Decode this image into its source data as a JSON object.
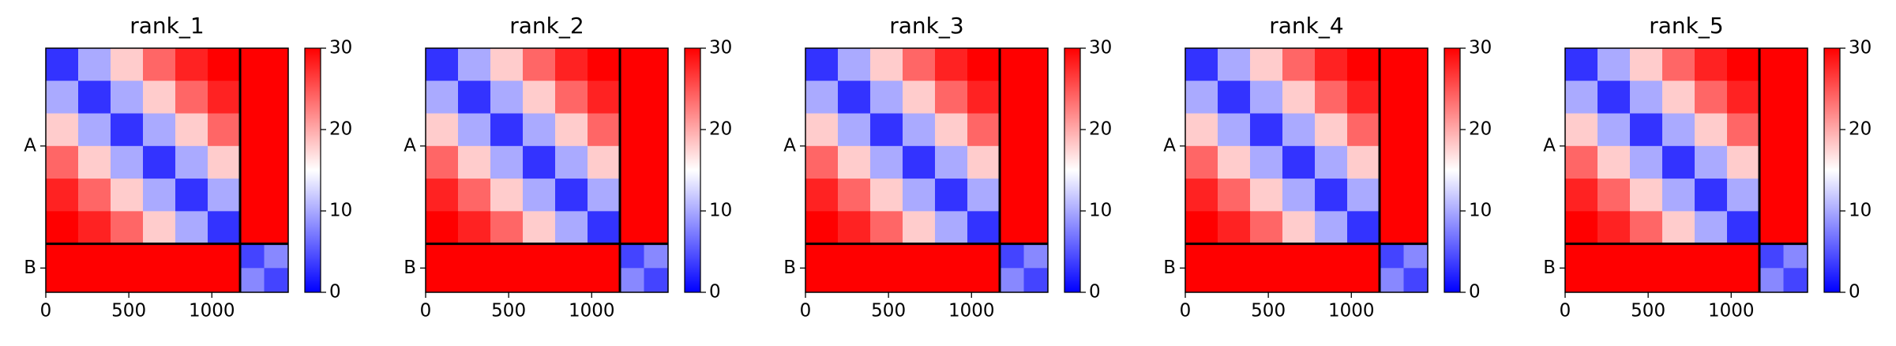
{
  "chart_data": [
    {
      "type": "heatmap",
      "title": "rank_1",
      "bins": [
        0,
        195,
        390,
        585,
        780,
        975,
        1170,
        1315,
        1460
      ],
      "matrix": [
        [
          3,
          10,
          18,
          24,
          28,
          30,
          30,
          30
        ],
        [
          10,
          3,
          10,
          18,
          24,
          28,
          30,
          30
        ],
        [
          18,
          10,
          3,
          10,
          18,
          24,
          30,
          30
        ],
        [
          24,
          18,
          10,
          3,
          10,
          18,
          30,
          30
        ],
        [
          28,
          24,
          18,
          10,
          3,
          10,
          30,
          30
        ],
        [
          30,
          28,
          24,
          18,
          10,
          3,
          30,
          30
        ],
        [
          30,
          30,
          30,
          30,
          30,
          30,
          4,
          8
        ],
        [
          30,
          30,
          30,
          30,
          30,
          30,
          8,
          4
        ]
      ],
      "xlim": [
        0,
        1460
      ],
      "xticks": [
        0,
        500,
        1000
      ],
      "ylim": [
        0,
        1460
      ],
      "y_inverted": true,
      "yticks": [
        {
          "value": 585,
          "label": "A"
        },
        {
          "value": 1315,
          "label": "B"
        }
      ],
      "chain_breaks": [
        1170
      ],
      "clim": [
        0,
        30
      ],
      "cticks": [
        0,
        10,
        20,
        30
      ],
      "colormap": [
        "#0000ff",
        "#ffffff",
        "#ff0000"
      ]
    },
    {
      "type": "heatmap",
      "title": "rank_2",
      "bins": [
        0,
        195,
        390,
        585,
        780,
        975,
        1170,
        1315,
        1460
      ],
      "matrix": [
        [
          3,
          10,
          18,
          24,
          28,
          30,
          30,
          30
        ],
        [
          10,
          3,
          10,
          18,
          24,
          28,
          30,
          30
        ],
        [
          18,
          10,
          3,
          10,
          18,
          24,
          30,
          30
        ],
        [
          24,
          18,
          10,
          3,
          10,
          18,
          30,
          30
        ],
        [
          28,
          24,
          18,
          10,
          3,
          10,
          30,
          30
        ],
        [
          30,
          28,
          24,
          18,
          10,
          3,
          30,
          30
        ],
        [
          30,
          30,
          30,
          30,
          30,
          30,
          4,
          8
        ],
        [
          30,
          30,
          30,
          30,
          30,
          30,
          8,
          4
        ]
      ],
      "xlim": [
        0,
        1460
      ],
      "xticks": [
        0,
        500,
        1000
      ],
      "ylim": [
        0,
        1460
      ],
      "y_inverted": true,
      "yticks": [
        {
          "value": 585,
          "label": "A"
        },
        {
          "value": 1315,
          "label": "B"
        }
      ],
      "chain_breaks": [
        1170
      ],
      "clim": [
        0,
        30
      ],
      "cticks": [
        0,
        10,
        20,
        30
      ],
      "colormap": [
        "#0000ff",
        "#ffffff",
        "#ff0000"
      ]
    },
    {
      "type": "heatmap",
      "title": "rank_3",
      "bins": [
        0,
        195,
        390,
        585,
        780,
        975,
        1170,
        1315,
        1460
      ],
      "matrix": [
        [
          3,
          10,
          18,
          24,
          28,
          30,
          30,
          30
        ],
        [
          10,
          3,
          10,
          18,
          24,
          28,
          30,
          30
        ],
        [
          18,
          10,
          3,
          10,
          18,
          24,
          30,
          30
        ],
        [
          24,
          18,
          10,
          3,
          10,
          18,
          30,
          30
        ],
        [
          28,
          24,
          18,
          10,
          3,
          10,
          30,
          30
        ],
        [
          30,
          28,
          24,
          18,
          10,
          3,
          30,
          30
        ],
        [
          30,
          30,
          30,
          30,
          30,
          30,
          4,
          8
        ],
        [
          30,
          30,
          30,
          30,
          30,
          30,
          8,
          4
        ]
      ],
      "xlim": [
        0,
        1460
      ],
      "xticks": [
        0,
        500,
        1000
      ],
      "ylim": [
        0,
        1460
      ],
      "y_inverted": true,
      "yticks": [
        {
          "value": 585,
          "label": "A"
        },
        {
          "value": 1315,
          "label": "B"
        }
      ],
      "chain_breaks": [
        1170
      ],
      "clim": [
        0,
        30
      ],
      "cticks": [
        0,
        10,
        20,
        30
      ],
      "colormap": [
        "#0000ff",
        "#ffffff",
        "#ff0000"
      ]
    },
    {
      "type": "heatmap",
      "title": "rank_4",
      "bins": [
        0,
        195,
        390,
        585,
        780,
        975,
        1170,
        1315,
        1460
      ],
      "matrix": [
        [
          3,
          10,
          18,
          24,
          28,
          30,
          30,
          30
        ],
        [
          10,
          3,
          10,
          18,
          24,
          28,
          30,
          30
        ],
        [
          18,
          10,
          3,
          10,
          18,
          24,
          30,
          30
        ],
        [
          24,
          18,
          10,
          3,
          10,
          18,
          30,
          30
        ],
        [
          28,
          24,
          18,
          10,
          3,
          10,
          30,
          30
        ],
        [
          30,
          28,
          24,
          18,
          10,
          3,
          30,
          30
        ],
        [
          30,
          30,
          30,
          30,
          30,
          30,
          4,
          8
        ],
        [
          30,
          30,
          30,
          30,
          30,
          30,
          8,
          4
        ]
      ],
      "xlim": [
        0,
        1460
      ],
      "xticks": [
        0,
        500,
        1000
      ],
      "ylim": [
        0,
        1460
      ],
      "y_inverted": true,
      "yticks": [
        {
          "value": 585,
          "label": "A"
        },
        {
          "value": 1315,
          "label": "B"
        }
      ],
      "chain_breaks": [
        1170
      ],
      "clim": [
        0,
        30
      ],
      "cticks": [
        0,
        10,
        20,
        30
      ],
      "colormap": [
        "#0000ff",
        "#ffffff",
        "#ff0000"
      ]
    },
    {
      "type": "heatmap",
      "title": "rank_5",
      "bins": [
        0,
        195,
        390,
        585,
        780,
        975,
        1170,
        1315,
        1460
      ],
      "matrix": [
        [
          3,
          10,
          18,
          24,
          28,
          30,
          30,
          30
        ],
        [
          10,
          3,
          10,
          18,
          24,
          28,
          30,
          30
        ],
        [
          18,
          10,
          3,
          10,
          18,
          24,
          30,
          30
        ],
        [
          24,
          18,
          10,
          3,
          10,
          18,
          30,
          30
        ],
        [
          28,
          24,
          18,
          10,
          3,
          10,
          30,
          30
        ],
        [
          30,
          28,
          24,
          18,
          10,
          3,
          30,
          30
        ],
        [
          30,
          30,
          30,
          30,
          30,
          30,
          4,
          8
        ],
        [
          30,
          30,
          30,
          30,
          30,
          30,
          8,
          4
        ]
      ],
      "xlim": [
        0,
        1460
      ],
      "xticks": [
        0,
        500,
        1000
      ],
      "ylim": [
        0,
        1460
      ],
      "y_inverted": true,
      "yticks": [
        {
          "value": 585,
          "label": "A"
        },
        {
          "value": 1315,
          "label": "B"
        }
      ],
      "chain_breaks": [
        1170
      ],
      "clim": [
        0,
        30
      ],
      "cticks": [
        0,
        10,
        20,
        30
      ],
      "colormap": [
        "#0000ff",
        "#ffffff",
        "#ff0000"
      ]
    }
  ]
}
